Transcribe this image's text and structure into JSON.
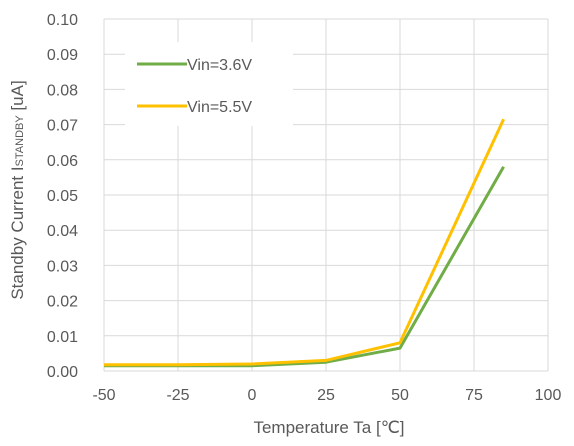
{
  "chart_data": {
    "type": "line",
    "title": "",
    "xlabel": "Temperature   Ta [℃]",
    "ylabel_main": "Standby Current I",
    "ylabel_sub": "STANDBY",
    "ylabel_unit": " [uA]",
    "xlim": [
      -50,
      100
    ],
    "ylim": [
      0,
      0.1
    ],
    "x_ticks": [
      -50,
      -25,
      0,
      25,
      50,
      75,
      100
    ],
    "x_tick_labels": [
      "-50",
      "-25",
      "0",
      "25",
      "50",
      "75",
      "100"
    ],
    "y_ticks": [
      0,
      0.01,
      0.02,
      0.03,
      0.04,
      0.05,
      0.06,
      0.07,
      0.08,
      0.09,
      0.1
    ],
    "y_tick_labels": [
      "0.00",
      "0.01",
      "0.02",
      "0.03",
      "0.04",
      "0.05",
      "0.06",
      "0.07",
      "0.08",
      "0.09",
      "0.10"
    ],
    "grid": true,
    "legend_position": "top-left",
    "series": [
      {
        "name": "Vin=3.6V",
        "color": "#70ad47",
        "x": [
          -50,
          -25,
          0,
          25,
          50,
          85
        ],
        "y": [
          0.0015,
          0.0015,
          0.0015,
          0.0025,
          0.0065,
          0.058
        ]
      },
      {
        "name": "Vin=5.5V",
        "color": "#ffc000",
        "x": [
          -50,
          -25,
          0,
          25,
          50,
          85
        ],
        "y": [
          0.0018,
          0.0018,
          0.002,
          0.003,
          0.008,
          0.0715
        ]
      }
    ]
  }
}
